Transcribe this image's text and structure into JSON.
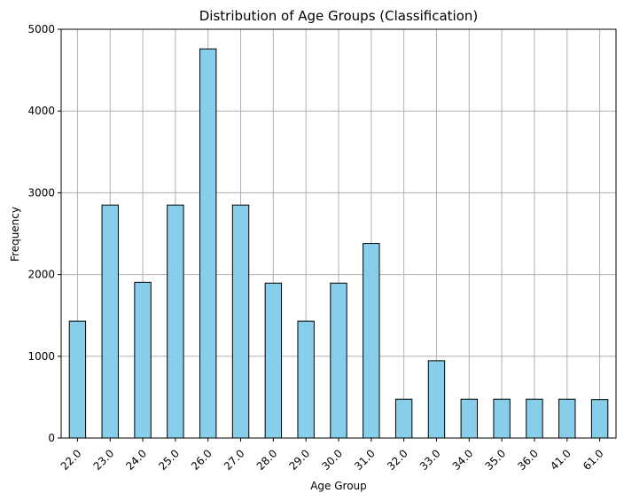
{
  "chart_data": {
    "type": "bar",
    "title": "Distribution of Age Groups (Classification)",
    "xlabel": "Age Group",
    "ylabel": "Frequency",
    "categories": [
      "22.0",
      "23.0",
      "24.0",
      "25.0",
      "26.0",
      "27.0",
      "28.0",
      "29.0",
      "30.0",
      "31.0",
      "32.0",
      "33.0",
      "34.0",
      "35.0",
      "36.0",
      "41.0",
      "61.0"
    ],
    "values": [
      1430,
      2850,
      1905,
      2850,
      4760,
      2850,
      1895,
      1430,
      1895,
      2380,
      475,
      945,
      475,
      475,
      475,
      475,
      470
    ],
    "ylim": [
      0,
      5000
    ],
    "yticks": [
      0,
      1000,
      2000,
      3000,
      4000,
      5000
    ],
    "grid": true,
    "bar_color": "#87ceeb",
    "edge_color": "#000000",
    "grid_color": "#b0b0b0",
    "xtick_rotation_deg": 45
  }
}
